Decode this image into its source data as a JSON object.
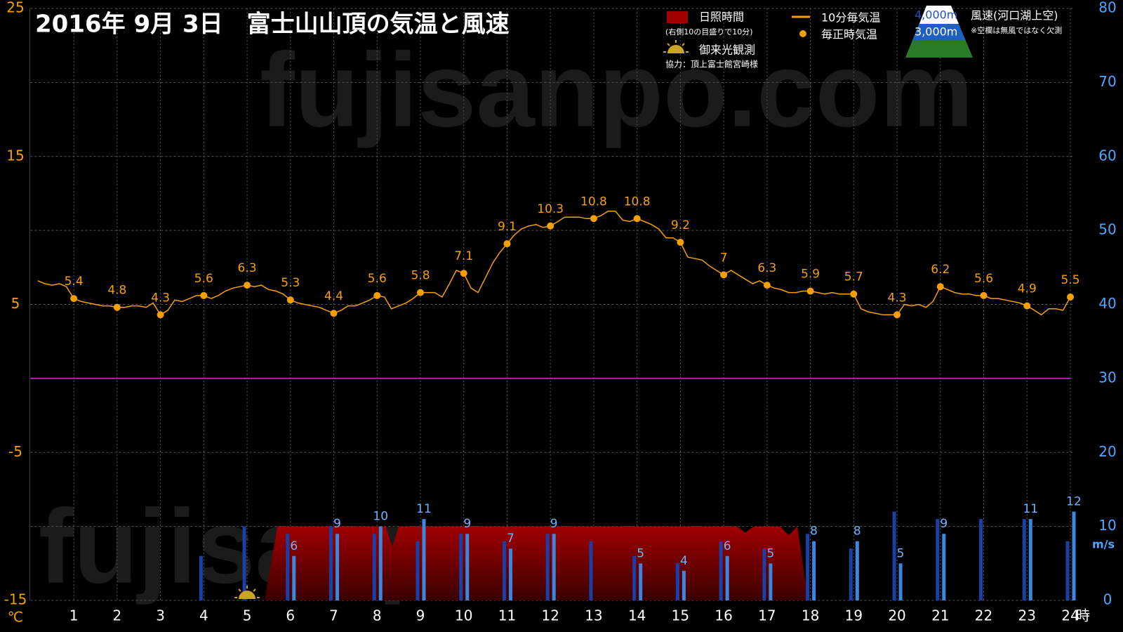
{
  "chart_data": {
    "type": "combo",
    "title": "2016年  9月  3日　富士山山頂の気温と風速",
    "watermark": "fujisanpo.com",
    "x_unit": "時",
    "y_unit": "℃",
    "y2_unit": "m/s",
    "xlim": [
      0,
      24
    ],
    "xticks": [
      1,
      2,
      3,
      4,
      5,
      6,
      7,
      8,
      9,
      10,
      11,
      12,
      13,
      14,
      15,
      16,
      17,
      18,
      19,
      20,
      21,
      22,
      23,
      24
    ],
    "ylim": [
      -15,
      25
    ],
    "yticks": [
      -15,
      -5,
      5,
      15,
      25
    ],
    "y2lim": [
      0,
      80
    ],
    "y2ticks": [
      0,
      10,
      20,
      30,
      40,
      50,
      60,
      70,
      80
    ],
    "grid": true,
    "reference_line": {
      "value": 0,
      "color": "#b020b0"
    },
    "sunshine_note": "(右側10の目盛りで10分)",
    "sunrise_label": "御来光観測",
    "sunrise_hour": 5,
    "credit": "協力：頂上富士館宮崎様",
    "wind_legend_title": "風速(河口湖上空)",
    "wind_note": "※空欄は無風ではなく欠測",
    "series": [
      {
        "name": "日照時間",
        "type": "area",
        "axis": "y2",
        "color": "#9a0000",
        "x": [
          5.4,
          5.7,
          8.2,
          8.35,
          8.5,
          16.3,
          16.5,
          16.7,
          17.3,
          17.5,
          17.7,
          17.95
        ],
        "values": [
          0,
          10,
          10,
          7.3,
          10,
          10,
          9.2,
          10,
          10,
          8.8,
          10,
          0
        ]
      },
      {
        "name": "10分毎気温",
        "type": "line",
        "color": "#f5a000",
        "x": [
          0.17,
          0.33,
          0.5,
          0.67,
          0.83,
          1.0,
          1.17,
          1.33,
          1.5,
          1.67,
          1.83,
          2.0,
          2.17,
          2.33,
          2.5,
          2.67,
          2.83,
          3.0,
          3.17,
          3.33,
          3.5,
          3.67,
          3.83,
          4.0,
          4.17,
          4.33,
          4.5,
          4.67,
          4.83,
          5.0,
          5.17,
          5.33,
          5.5,
          5.67,
          5.83,
          6.0,
          6.17,
          6.33,
          6.5,
          6.67,
          6.83,
          7.0,
          7.17,
          7.33,
          7.5,
          7.67,
          7.83,
          8.0,
          8.17,
          8.33,
          8.5,
          8.67,
          8.83,
          9.0,
          9.17,
          9.33,
          9.5,
          9.67,
          9.83,
          10.0,
          10.17,
          10.33,
          10.5,
          10.67,
          10.83,
          11.0,
          11.17,
          11.33,
          11.5,
          11.67,
          11.83,
          12.0,
          12.17,
          12.33,
          12.5,
          12.67,
          12.83,
          13.0,
          13.17,
          13.33,
          13.5,
          13.67,
          13.83,
          14.0,
          14.17,
          14.33,
          14.5,
          14.67,
          14.83,
          15.0,
          15.17,
          15.33,
          15.5,
          15.67,
          15.83,
          16.0,
          16.17,
          16.33,
          16.5,
          16.67,
          16.83,
          17.0,
          17.17,
          17.33,
          17.5,
          17.67,
          17.83,
          18.0,
          18.17,
          18.33,
          18.5,
          18.67,
          18.83,
          19.0,
          19.17,
          19.33,
          19.5,
          19.67,
          19.83,
          20.0,
          20.17,
          20.33,
          20.5,
          20.67,
          20.83,
          21.0,
          21.17,
          21.33,
          21.5,
          21.67,
          21.83,
          22.0,
          22.17,
          22.33,
          22.5,
          22.67,
          22.83,
          23.0,
          23.17,
          23.33,
          23.5,
          23.67,
          23.83,
          24.0
        ],
        "values": [
          6.6,
          6.4,
          6.3,
          6.4,
          6.2,
          5.4,
          5.2,
          5.1,
          5.0,
          4.9,
          4.9,
          4.8,
          4.8,
          4.9,
          4.9,
          4.8,
          5.1,
          4.3,
          4.6,
          5.3,
          5.2,
          5.4,
          5.6,
          5.6,
          5.4,
          5.6,
          5.9,
          6.1,
          6.2,
          6.3,
          6.2,
          6.3,
          6.0,
          5.9,
          5.7,
          5.3,
          5.1,
          5.0,
          4.9,
          4.8,
          4.6,
          4.4,
          4.6,
          4.9,
          4.9,
          5.1,
          5.3,
          5.6,
          5.5,
          4.7,
          4.9,
          5.1,
          5.4,
          5.8,
          5.8,
          5.8,
          5.5,
          6.4,
          7.3,
          7.1,
          6.1,
          5.8,
          6.8,
          7.8,
          8.5,
          9.1,
          9.7,
          10.1,
          10.3,
          10.4,
          10.2,
          10.3,
          10.6,
          10.9,
          10.9,
          10.9,
          10.8,
          10.8,
          11.0,
          11.3,
          11.3,
          10.7,
          10.6,
          10.8,
          10.6,
          10.4,
          10.1,
          9.5,
          9.5,
          9.2,
          8.2,
          8.1,
          8.0,
          7.6,
          7.3,
          7.0,
          7.3,
          7.0,
          6.7,
          6.4,
          6.6,
          6.3,
          6.1,
          6.0,
          5.8,
          5.8,
          5.9,
          5.9,
          5.8,
          5.7,
          5.8,
          5.7,
          5.7,
          5.7,
          4.7,
          4.5,
          4.4,
          4.3,
          4.3,
          4.3,
          5.0,
          4.9,
          5.0,
          4.8,
          5.2,
          6.2,
          6.0,
          5.8,
          5.7,
          5.7,
          5.6,
          5.6,
          5.4,
          5.4,
          5.3,
          5.2,
          5.1,
          4.9,
          4.6,
          4.3,
          4.7,
          4.7,
          4.6,
          5.5
        ]
      },
      {
        "name": "毎正時気温",
        "type": "scatter",
        "color": "#f5a000",
        "x": [
          1,
          2,
          3,
          4,
          5,
          6,
          7,
          8,
          9,
          10,
          11,
          12,
          13,
          14,
          15,
          16,
          17,
          18,
          19,
          20,
          21,
          22,
          23,
          24
        ],
        "values": [
          5.4,
          4.8,
          4.3,
          5.6,
          6.3,
          5.3,
          4.4,
          5.6,
          5.8,
          7.1,
          9.1,
          10.3,
          10.8,
          10.8,
          9.2,
          7,
          6.3,
          5.9,
          5.7,
          4.3,
          6.2,
          5.6,
          4.9,
          5.5
        ]
      },
      {
        "name": "4,000m",
        "type": "bar",
        "axis": "y2",
        "color": "#1a3fa8",
        "x": [
          1,
          2,
          3,
          4,
          5,
          6,
          7,
          8,
          9,
          10,
          11,
          12,
          13,
          14,
          15,
          16,
          17,
          18,
          19,
          20,
          21,
          22,
          23,
          24
        ],
        "values": [
          null,
          null,
          null,
          6,
          10,
          9,
          10,
          9,
          8,
          9,
          8,
          9,
          8,
          6,
          5,
          8,
          7,
          9,
          7,
          12,
          11,
          11,
          11,
          8
        ]
      },
      {
        "name": "3,000m",
        "type": "bar",
        "axis": "y2",
        "color": "#3d86e0",
        "labels": true,
        "x": [
          1,
          2,
          3,
          4,
          5,
          6,
          7,
          8,
          9,
          10,
          11,
          12,
          13,
          14,
          15,
          16,
          17,
          18,
          19,
          20,
          21,
          22,
          23,
          24
        ],
        "values": [
          null,
          null,
          null,
          null,
          null,
          6,
          9,
          10,
          11,
          9,
          7,
          9,
          null,
          5,
          4,
          6,
          5,
          8,
          8,
          5,
          9,
          null,
          11,
          12
        ]
      }
    ]
  }
}
